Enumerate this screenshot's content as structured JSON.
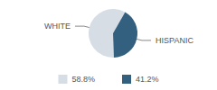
{
  "chart_data": {
    "type": "pie",
    "categories": [
      "WHITE",
      "HISPANIC"
    ],
    "values": [
      58.8,
      41.2
    ],
    "value_labels": [
      "58.8%",
      "41.2%"
    ],
    "colors": [
      "#d6dde5",
      "#34607f"
    ],
    "legend": "bottom"
  }
}
